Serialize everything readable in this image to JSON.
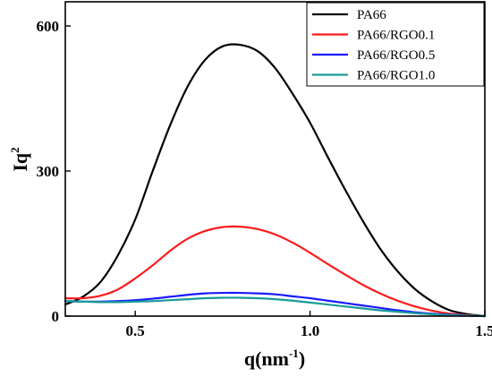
{
  "chart_data": {
    "type": "line",
    "title": "",
    "xlabel": {
      "base": "q(nm",
      "sup": "-1",
      "tail": ")"
    },
    "ylabel": {
      "base": "Iq",
      "sup": "2"
    },
    "xlim": [
      0.3,
      1.5
    ],
    "ylim": [
      0,
      650
    ],
    "xticks": [
      0.5,
      1.0,
      1.5
    ],
    "xtick_labels": [
      "0.5",
      "1.0",
      "1.5"
    ],
    "yticks": [
      0,
      300,
      600
    ],
    "ytick_labels": [
      "0",
      "300",
      "600"
    ],
    "grid": false,
    "legend_position": "top-right",
    "series": [
      {
        "name": "PA66",
        "color": "#000000",
        "x": [
          0.3,
          0.35,
          0.4,
          0.45,
          0.5,
          0.55,
          0.6,
          0.65,
          0.7,
          0.75,
          0.8,
          0.85,
          0.9,
          0.95,
          1.0,
          1.05,
          1.1,
          1.15,
          1.2,
          1.25,
          1.3,
          1.35,
          1.4,
          1.45,
          1.5
        ],
        "values": [
          24,
          40,
          70,
          125,
          200,
          300,
          395,
          475,
          530,
          558,
          561,
          548,
          513,
          460,
          400,
          330,
          262,
          198,
          140,
          93,
          56,
          30,
          12,
          4,
          0
        ]
      },
      {
        "name": "PA66/RGO0.1",
        "color": "#ff1a1a",
        "x": [
          0.3,
          0.35,
          0.4,
          0.45,
          0.5,
          0.55,
          0.6,
          0.65,
          0.7,
          0.75,
          0.8,
          0.85,
          0.9,
          0.95,
          1.0,
          1.05,
          1.1,
          1.15,
          1.2,
          1.25,
          1.3,
          1.35,
          1.4,
          1.45,
          1.5
        ],
        "values": [
          37,
          37,
          42,
          55,
          78,
          105,
          135,
          160,
          176,
          184,
          185,
          180,
          169,
          152,
          131,
          108,
          86,
          65,
          47,
          32,
          20,
          11,
          5,
          2,
          0
        ]
      },
      {
        "name": "PA66/RGO0.5",
        "color": "#1a1aff",
        "x": [
          0.3,
          0.35,
          0.4,
          0.45,
          0.5,
          0.55,
          0.6,
          0.65,
          0.7,
          0.75,
          0.8,
          0.85,
          0.9,
          0.95,
          1.0,
          1.05,
          1.1,
          1.15,
          1.2,
          1.25,
          1.3,
          1.35,
          1.4,
          1.45,
          1.5
        ],
        "values": [
          31,
          30,
          30,
          31,
          33,
          36,
          40,
          44,
          47,
          48,
          48,
          47,
          45,
          41,
          37,
          32,
          27,
          22,
          17,
          12,
          8,
          5,
          3,
          1,
          0
        ]
      },
      {
        "name": "PA66/RGO1.0",
        "color": "#1a9a9a",
        "x": [
          0.3,
          0.35,
          0.4,
          0.45,
          0.5,
          0.55,
          0.6,
          0.65,
          0.7,
          0.75,
          0.8,
          0.85,
          0.9,
          0.95,
          1.0,
          1.05,
          1.1,
          1.15,
          1.2,
          1.25,
          1.3,
          1.35,
          1.4,
          1.45,
          1.5
        ],
        "values": [
          31,
          30,
          29,
          29,
          30,
          31,
          33,
          35,
          37,
          38,
          38,
          37,
          35,
          32,
          28,
          24,
          20,
          16,
          12,
          9,
          6,
          4,
          2,
          1,
          0
        ]
      }
    ]
  }
}
